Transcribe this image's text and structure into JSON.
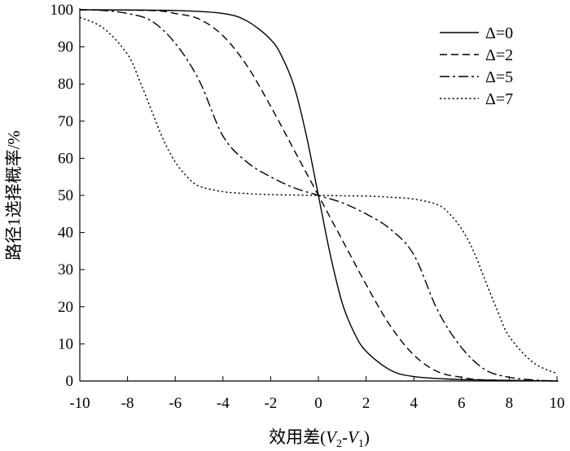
{
  "chart_data": {
    "type": "line",
    "xlabel": "效用差(V2-V1)",
    "xlabel_parts": {
      "main": "效用差(",
      "v2": "V",
      "v2_sub": "2",
      "dash": "-",
      "v1": "V",
      "v1_sub": "1",
      "close": ")"
    },
    "ylabel": "路径1选择概率/%",
    "xlim": [
      -10,
      10
    ],
    "ylim": [
      0,
      100
    ],
    "x_ticks": [
      -10,
      -8,
      -6,
      -4,
      -2,
      0,
      2,
      4,
      6,
      8,
      10
    ],
    "y_ticks": [
      0,
      10,
      20,
      30,
      40,
      50,
      60,
      70,
      80,
      90,
      100
    ],
    "grid": false,
    "legend_position": "top-right",
    "series": [
      {
        "name": "Δ=0",
        "style": "solid",
        "x": [
          -10,
          -6,
          -4,
          -3,
          -2,
          -1.5,
          -1,
          -0.5,
          0,
          0.5,
          1,
          1.5,
          2,
          3,
          4,
          6,
          10
        ],
        "y": [
          100,
          99.8,
          99,
          97,
          92,
          87,
          79,
          66,
          50,
          34,
          21,
          13,
          8,
          3,
          1.2,
          0.4,
          0
        ]
      },
      {
        "name": "Δ=2",
        "style": "dashed",
        "x": [
          -10,
          -7,
          -6,
          -5,
          -4,
          -3,
          -2,
          -1,
          0,
          1,
          2,
          3,
          4,
          5,
          6,
          7,
          10
        ],
        "y": [
          100,
          99.8,
          99,
          97.5,
          93,
          85,
          74,
          62,
          50,
          38,
          26,
          15,
          7,
          2.5,
          1,
          0.3,
          0
        ]
      },
      {
        "name": "Δ=5",
        "style": "dashdot",
        "x": [
          -10,
          -9,
          -8,
          -7,
          -6,
          -5,
          -4,
          -3,
          -2,
          -1,
          0,
          1,
          2,
          3,
          4,
          5,
          6,
          7,
          8,
          9,
          10
        ],
        "y": [
          100,
          99.8,
          99,
          97,
          91,
          81,
          66,
          59,
          55,
          52,
          50,
          48,
          45,
          41,
          34,
          19,
          9,
          3,
          1,
          0.3,
          0
        ]
      },
      {
        "name": "Δ=7",
        "style": "dotted",
        "x": [
          -10,
          -9,
          -8,
          -7.5,
          -7,
          -6.5,
          -6,
          -5.5,
          -5,
          -4,
          -3,
          -2,
          -1,
          0,
          1,
          2,
          3,
          4,
          5,
          5.5,
          6,
          6.5,
          7,
          7.5,
          8,
          9,
          10
        ],
        "y": [
          98,
          95,
          88,
          81,
          73,
          65,
          59,
          55,
          52.5,
          51,
          50.5,
          50.2,
          50.1,
          50,
          49.9,
          49.8,
          49.5,
          49,
          47.5,
          45,
          41,
          35,
          27,
          19,
          12,
          5,
          2
        ]
      }
    ]
  }
}
